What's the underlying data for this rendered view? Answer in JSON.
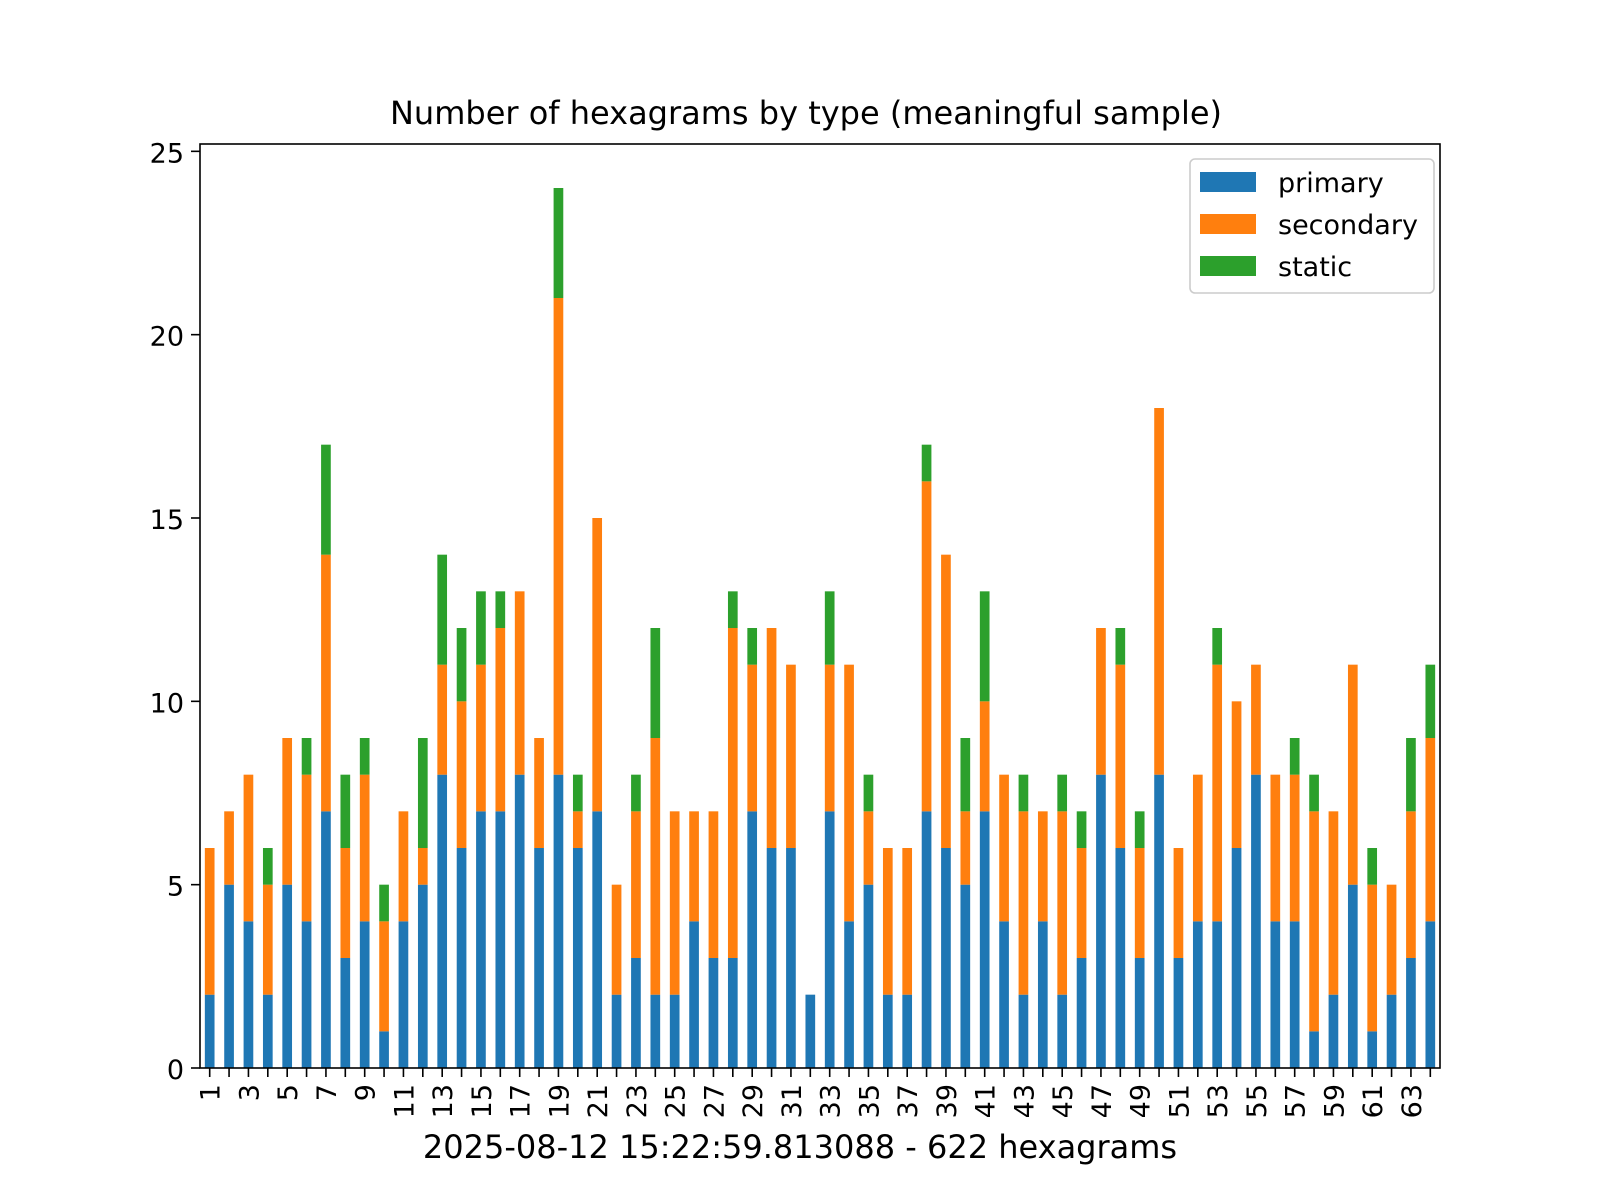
{
  "chart_data": {
    "type": "bar",
    "stacked": true,
    "title": "Number of hexagrams by type (meaningful sample)",
    "xlabel": "",
    "ylabel": "",
    "ylim": [
      0,
      25.2
    ],
    "yticks": [
      0,
      5,
      10,
      15,
      20,
      25
    ],
    "categories": [
      1,
      2,
      3,
      4,
      5,
      6,
      7,
      8,
      9,
      10,
      11,
      12,
      13,
      14,
      15,
      16,
      17,
      18,
      19,
      20,
      21,
      22,
      23,
      24,
      25,
      26,
      27,
      28,
      29,
      30,
      31,
      32,
      33,
      34,
      35,
      36,
      37,
      38,
      39,
      40,
      41,
      42,
      43,
      44,
      45,
      46,
      47,
      48,
      49,
      50,
      51,
      52,
      53,
      54,
      55,
      56,
      57,
      58,
      59,
      60,
      61,
      62,
      63,
      64
    ],
    "xtick_labels": [
      "1",
      "3",
      "5",
      "7",
      "9",
      "11",
      "13",
      "15",
      "17",
      "19",
      "21",
      "23",
      "25",
      "27",
      "29",
      "31",
      "33",
      "35",
      "37",
      "39",
      "41",
      "43",
      "45",
      "47",
      "49",
      "51",
      "53",
      "55",
      "57",
      "59",
      "61",
      "63"
    ],
    "legend_position": "top-right",
    "grid": false,
    "series": [
      {
        "name": "primary",
        "color": "#1f77b4",
        "values": [
          2,
          5,
          4,
          2,
          5,
          4,
          7,
          3,
          4,
          1,
          4,
          5,
          8,
          6,
          7,
          7,
          8,
          6,
          8,
          6,
          7,
          2,
          3,
          2,
          2,
          4,
          3,
          3,
          7,
          6,
          6,
          2,
          7,
          4,
          5,
          2,
          2,
          7,
          6,
          5,
          7,
          4,
          2,
          4,
          2,
          3,
          8,
          6,
          3,
          8,
          3,
          4,
          4,
          6,
          8,
          4,
          4,
          1,
          2,
          5,
          1,
          2,
          3,
          4
        ]
      },
      {
        "name": "secondary",
        "color": "#ff7f0e",
        "values": [
          4,
          2,
          4,
          3,
          4,
          4,
          7,
          3,
          4,
          3,
          3,
          1,
          3,
          4,
          4,
          5,
          5,
          3,
          13,
          1,
          8,
          3,
          4,
          7,
          5,
          3,
          4,
          9,
          4,
          6,
          5,
          0,
          4,
          7,
          2,
          4,
          4,
          9,
          8,
          2,
          3,
          4,
          5,
          3,
          5,
          3,
          4,
          5,
          3,
          10,
          3,
          4,
          7,
          4,
          3,
          4,
          4,
          6,
          5,
          6,
          4,
          3,
          4,
          5
        ]
      },
      {
        "name": "static",
        "color": "#2ca02c",
        "values": [
          0,
          0,
          0,
          1,
          0,
          1,
          3,
          2,
          1,
          1,
          0,
          3,
          3,
          2,
          2,
          1,
          0,
          0,
          3,
          1,
          0,
          0,
          1,
          3,
          0,
          0,
          0,
          1,
          1,
          0,
          0,
          0,
          2,
          0,
          1,
          0,
          0,
          1,
          0,
          2,
          3,
          0,
          1,
          0,
          1,
          1,
          0,
          1,
          1,
          0,
          0,
          0,
          1,
          0,
          0,
          0,
          1,
          1,
          0,
          0,
          1,
          0,
          2,
          2
        ]
      }
    ]
  },
  "footer": {
    "caption": "2025-08-12 15:22:59.813088 - 622 hexagrams"
  }
}
